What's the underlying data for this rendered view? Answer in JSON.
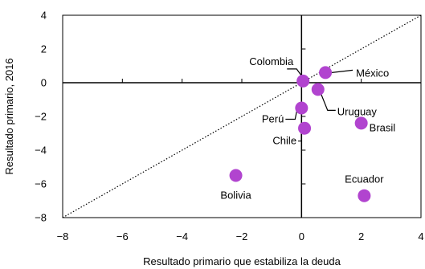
{
  "chart_data": {
    "type": "scatter",
    "xlabel": "Resultado primario  que estabiliza la deuda",
    "ylabel": "Resultado primario,  2016",
    "xlim": [
      -8,
      4
    ],
    "ylim": [
      -8,
      4
    ],
    "x_ticks": [
      "−8",
      "−6",
      "−4",
      "−2",
      "0",
      "2",
      "4"
    ],
    "y_ticks": [
      "4",
      "2",
      "0",
      "−2",
      "−4",
      "−6",
      "−8"
    ],
    "x_tick_values": [
      -8,
      -6,
      -4,
      -2,
      0,
      2,
      4
    ],
    "y_tick_values": [
      4,
      2,
      0,
      -2,
      -4,
      -6,
      -8
    ],
    "reference_line": "45-degree dotted line (y = x)",
    "grid": false,
    "marker_color": "#b144cf",
    "points": [
      {
        "label": "Colombia",
        "x": 0.05,
        "y": 0.1
      },
      {
        "label": "México",
        "x": 0.8,
        "y": 0.6
      },
      {
        "label": "Uruguay",
        "x": 0.55,
        "y": -0.4
      },
      {
        "label": "Perú",
        "x": 0.0,
        "y": -1.5
      },
      {
        "label": "Chile",
        "x": 0.1,
        "y": -2.7
      },
      {
        "label": "Brasil",
        "x": 2.0,
        "y": -2.4
      },
      {
        "label": "Bolivia",
        "x": -2.2,
        "y": -5.5
      },
      {
        "label": "Ecuador",
        "x": 2.1,
        "y": -6.7
      }
    ]
  }
}
